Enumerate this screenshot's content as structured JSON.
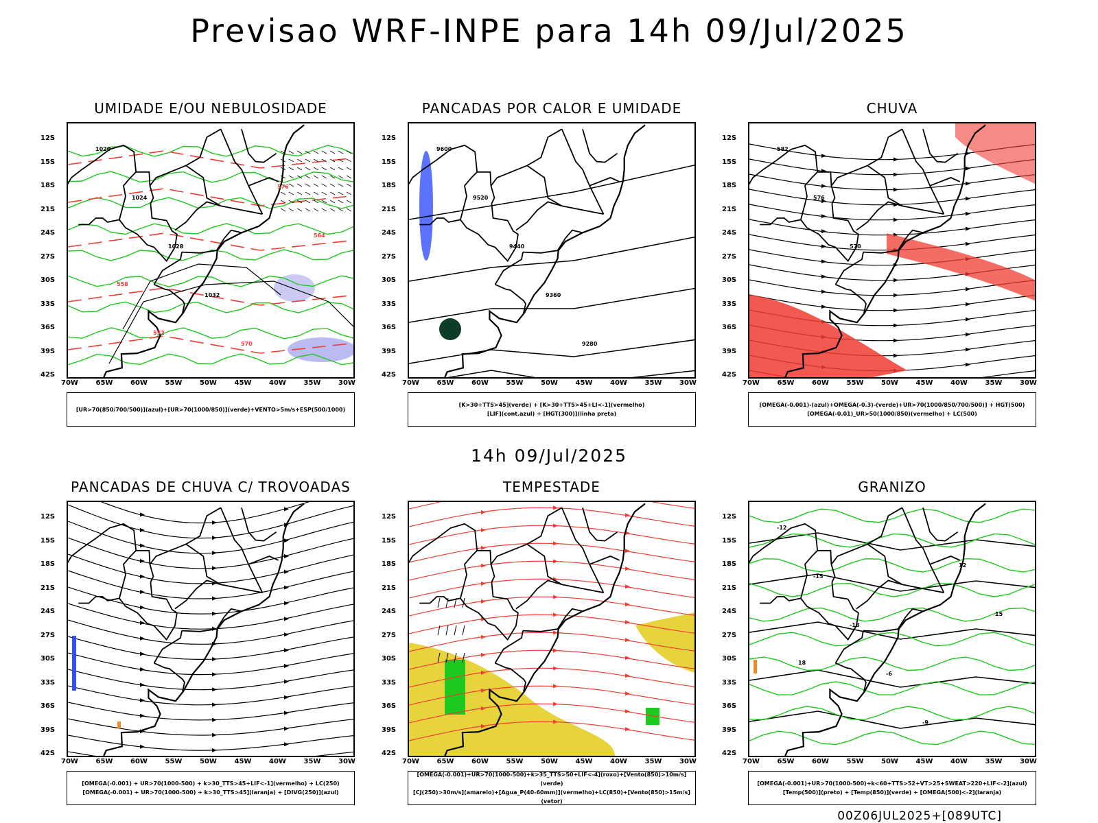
{
  "title": "Previsao WRF-INPE  para 14h 09/Jul/2025",
  "mid_title": "14h 09/Jul/2025",
  "footer": "00Z06JUL2025+[089UTC]",
  "lat_ticks": [
    "12S",
    "15S",
    "18S",
    "21S",
    "24S",
    "27S",
    "30S",
    "33S",
    "36S",
    "39S",
    "42S"
  ],
  "lon_ticks": [
    "70W",
    "65W",
    "60W",
    "55W",
    "50W",
    "45W",
    "40W",
    "35W",
    "30W"
  ],
  "panels": [
    {
      "title": "UMIDADE E/OU NEBULOSIDADE",
      "legend": [
        "[UR>70(850/700/500)](azul)+[UR>70(1000/850)](verde)+VENTO>5m/s+ESP(500/1000)"
      ],
      "contour_labels": [
        "1020",
        "1024",
        "1028",
        "1032",
        "570",
        "576",
        "564",
        "558",
        "552"
      ]
    },
    {
      "title": "PANCADAS POR CALOR E UMIDADE",
      "legend": [
        "[K>30+TTS>45](verde) + [K>30+TTS>45+LI<-1](vermelho)",
        "[LIF](cont.azul) + [HGT(300)](linha preta)"
      ],
      "contour_labels": [
        "9600",
        "9520",
        "9440",
        "9360",
        "9280"
      ]
    },
    {
      "title": "CHUVA",
      "legend": [
        "[OMEGA(-0.001)-(azul)+OMEGA(-0.3)-(verde)+UR>70(1000/850/700/500)] + HGT(500)",
        "[OMEGA(-0.01)_UR>50(1000/850)(vermelho) + LC(500)"
      ],
      "contour_labels": [
        "582",
        "576",
        "570"
      ]
    },
    {
      "title": "PANCADAS DE CHUVA C/ TROVOADAS",
      "legend": [
        "[OMEGA(-0.001) + UR>70(1000-500) + k>30_TTS>45+LIF<-1](vermelho) + LC(250)",
        "[OMEGA(-0.001) + UR>70(1000-500) + k>30_TTS>45](laranja) + [DIVG(250)](azul)"
      ],
      "contour_labels": []
    },
    {
      "title": "TEMPESTADE",
      "legend": [
        "[OMEGA(-0.001)+UR>70(1000-500)+k>35_TTS>50+LIF<-4](roxo)+[Vento(850)>10m/s](verde)",
        "[CJ(250)>30m/s](amarelo)+[Agua_P(40-60mm)](vermelho)+LC(850)+[Vento(850)>15m/s](vetor)"
      ],
      "contour_labels": []
    },
    {
      "title": "GRANIZO",
      "legend": [
        "[OMEGA(-0.001)+UR>70(1000-500)+k<60+TTS>52+VT>25+SWEAT>220+LIF<-2](azul)",
        "[Temp(500)](preto) + [Temp(850)](verde) + [OMEGA(500)<-2](laranja)"
      ],
      "contour_labels": [
        "-12",
        "-15",
        "-18",
        "-6",
        "-9",
        "12",
        "15",
        "18"
      ]
    }
  ],
  "colors": {
    "red": "#f03c32",
    "green": "#1ec81e",
    "blue": "#3250ff",
    "lavender": "#b4b4f0",
    "yellow": "#e6d232",
    "darkgreen": "#0f3c28",
    "orange": "#f08c28"
  }
}
